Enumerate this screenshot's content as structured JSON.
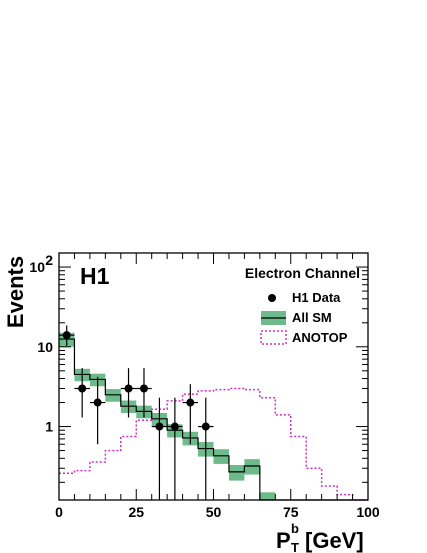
{
  "chart_data": {
    "type": "bar",
    "experiment_label": "H1",
    "channel_label": "Electron Channel",
    "xlabel_main": "P",
    "xlabel_sub": "T",
    "xlabel_sup": "b",
    "xlabel_unit": "[GeV]",
    "ylabel": "Events",
    "xlim": [
      0,
      100
    ],
    "ylim": [
      0.12,
      150
    ],
    "yscale": "log",
    "x_ticks": [
      0,
      25,
      50,
      75,
      100
    ],
    "y_ticks": [
      {
        "value": 100,
        "label": "10",
        "exp": "2"
      },
      {
        "value": 10,
        "label": "10"
      },
      {
        "value": 1,
        "label": "1"
      }
    ],
    "bin_edges": [
      0,
      5,
      10,
      15,
      20,
      25,
      30,
      35,
      40,
      45,
      50,
      55,
      60,
      65,
      70,
      75,
      80,
      85,
      90,
      95,
      100
    ],
    "legend": [
      {
        "label": "H1 Data",
        "style": "marker"
      },
      {
        "label": "All SM",
        "style": "band"
      },
      {
        "label": "ANOTOP",
        "style": "dashed"
      }
    ],
    "colors": {
      "sm_band": "#6dbb8a",
      "sm_line": "#000000",
      "anotop": "#d030c0",
      "data": "#000000"
    },
    "series": [
      {
        "name": "H1 Data",
        "x": [
          2.5,
          7.5,
          12.5,
          22.5,
          27.5,
          32.5,
          37.5,
          42.5,
          47.5
        ],
        "y": [
          14,
          3,
          2,
          3,
          3,
          1,
          1,
          2,
          1
        ],
        "y_low": [
          10.3,
          1.3,
          0.6,
          1.3,
          1.3,
          0.12,
          0.12,
          0.6,
          0.12
        ],
        "y_high": [
          18.5,
          5.4,
          4.2,
          5.4,
          5.4,
          2.3,
          2.3,
          3.4,
          2.3
        ]
      },
      {
        "name": "All SM",
        "values": [
          12.5,
          4.5,
          3.9,
          2.5,
          1.8,
          1.55,
          1.25,
          0.9,
          0.72,
          0.53,
          0.43,
          0.27,
          0.32,
          0.12,
          0.12,
          0.12,
          0.12,
          0.12,
          0.12,
          0.12
        ],
        "err": [
          2.5,
          0.8,
          0.7,
          0.45,
          0.32,
          0.28,
          0.23,
          0.17,
          0.14,
          0.11,
          0.09,
          0.06,
          0.07,
          0.03,
          0.0,
          0.0,
          0.0,
          0.0,
          0.0,
          0.0
        ]
      },
      {
        "name": "ANOTOP",
        "values": [
          0.26,
          0.28,
          0.36,
          0.5,
          0.75,
          1.2,
          1.65,
          2.1,
          2.55,
          2.8,
          2.9,
          3.0,
          2.9,
          2.3,
          1.4,
          0.75,
          0.3,
          0.18,
          0.14,
          0.12
        ]
      }
    ]
  }
}
